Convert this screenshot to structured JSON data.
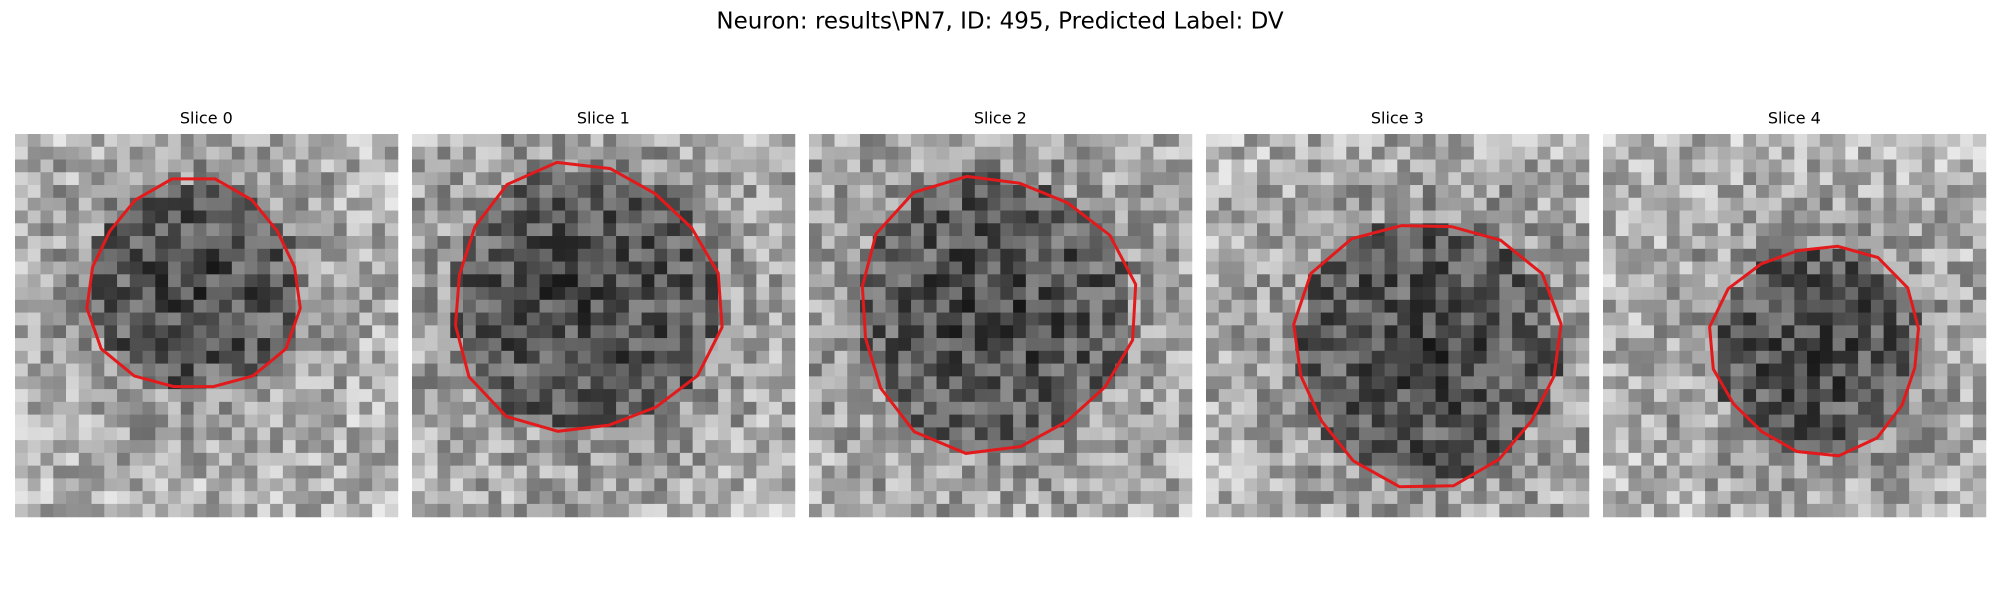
{
  "title": "Neuron: results\\PN7, ID: 495, Predicted Label: DV",
  "panels": [
    {
      "title": "Slice 0"
    },
    {
      "title": "Slice 1"
    },
    {
      "title": "Slice 2"
    },
    {
      "title": "Slice 3"
    },
    {
      "title": "Slice 4"
    }
  ]
}
